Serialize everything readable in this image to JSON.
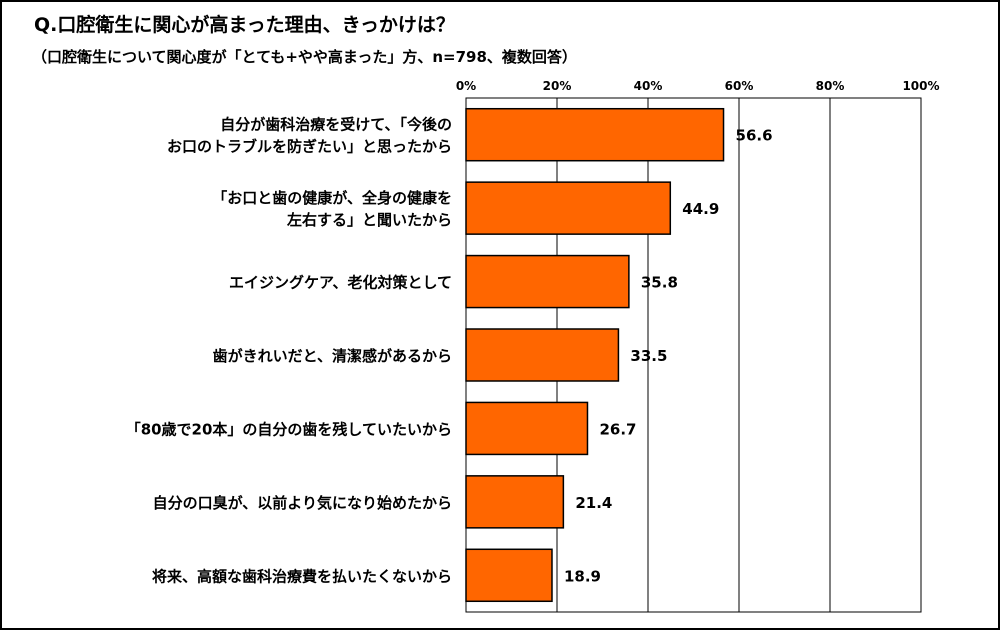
{
  "chart_data": {
    "type": "bar",
    "orientation": "horizontal",
    "title": "Q.口腔衛生に関心が高まった理由、きっかけは？",
    "subtitle": "（口腔衛生について関心度が「とても+やや高まった」方、n=798、複数回答）",
    "categories": [
      [
        "自分が歯科治療を受けて、「今後の",
        "お口のトラブルを防ぎたい」と思ったから"
      ],
      [
        "「お口と歯の健康が、全身の健康を",
        "左右する」と聞いたから"
      ],
      [
        "エイジングケア、老化対策として"
      ],
      [
        "歯がきれいだと、清潔感があるから"
      ],
      [
        "「80歳で20本」の自分の歯を残していたいから"
      ],
      [
        "自分の口臭が、以前より気になり始めたから"
      ],
      [
        "将来、高額な歯科治療費を払いたくないから"
      ]
    ],
    "values": [
      56.6,
      44.9,
      35.8,
      33.5,
      26.7,
      21.4,
      18.9
    ],
    "value_labels": [
      "56.6",
      "44.9",
      "35.8",
      "33.5",
      "26.7",
      "21.4",
      "18.9"
    ],
    "xlim": [
      0,
      100
    ],
    "ticks": [
      0,
      20,
      40,
      60,
      80,
      100
    ],
    "tick_labels": [
      "0%",
      "20%",
      "40%",
      "60%",
      "80%",
      "100%"
    ],
    "grid": true,
    "bar_color": "#ff6600",
    "bar_stroke": "#000000"
  }
}
